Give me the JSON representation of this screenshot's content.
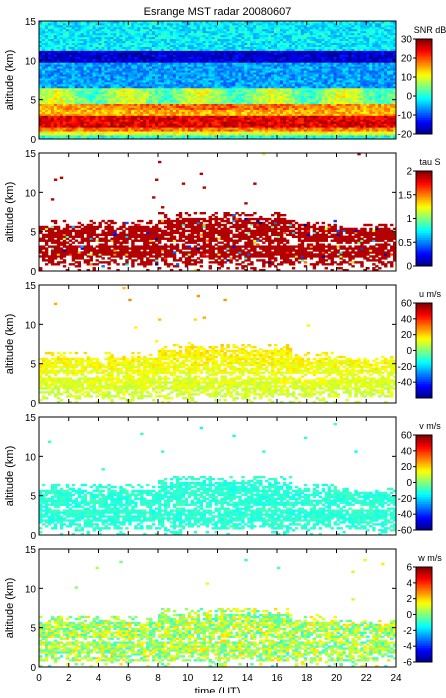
{
  "chart_data": [
    {
      "type": "heatmap",
      "title": "Esrange MST radar 20080607",
      "xlabel": "",
      "ylabel": "altitude (km)",
      "xlim": [
        0,
        24
      ],
      "ylim": [
        0,
        15
      ],
      "xticks": [
        0,
        2,
        4,
        6,
        8,
        10,
        12,
        14,
        16,
        18,
        20,
        22,
        24
      ],
      "yticks": [
        0,
        5,
        10,
        15
      ],
      "colorbar": {
        "label": "SNR dB",
        "range": [
          -20,
          30
        ],
        "ticks": [
          -20,
          -10,
          0,
          10,
          20,
          30
        ]
      },
      "features": [
        {
          "altitude_km": [
            0.5,
            1.5
          ],
          "value": 18
        },
        {
          "altitude_km": [
            1.5,
            3.0
          ],
          "value": 25
        },
        {
          "altitude_km": [
            3.0,
            4.5
          ],
          "value": 12
        },
        {
          "altitude_km": [
            4.5,
            6.5
          ],
          "value": 5
        },
        {
          "altitude_km": [
            6.5,
            10.0
          ],
          "value": -5
        },
        {
          "altitude_km": [
            10.0,
            11.0
          ],
          "value": -15
        },
        {
          "altitude_km": [
            11.0,
            15.0
          ],
          "value": -3
        }
      ]
    },
    {
      "type": "heatmap",
      "title": "",
      "xlabel": "",
      "ylabel": "altitude (km)",
      "xlim": [
        0,
        24
      ],
      "ylim": [
        0,
        15
      ],
      "xticks": [
        0,
        2,
        4,
        6,
        8,
        10,
        12,
        14,
        16,
        18,
        20,
        22,
        24
      ],
      "yticks": [
        0,
        5,
        10,
        15
      ],
      "colorbar": {
        "label": "tau S",
        "range": [
          0,
          2
        ],
        "ticks": [
          0,
          0.5,
          1,
          1.5,
          2
        ]
      },
      "features": [
        {
          "altitude_km": [
            1.5,
            6.5
          ],
          "value": 1.9
        }
      ]
    },
    {
      "type": "heatmap",
      "title": "",
      "xlabel": "",
      "ylabel": "altitude (km)",
      "xlim": [
        0,
        24
      ],
      "ylim": [
        0,
        15
      ],
      "xticks": [
        0,
        2,
        4,
        6,
        8,
        10,
        12,
        14,
        16,
        18,
        20,
        22,
        24
      ],
      "yticks": [
        0,
        5,
        10,
        15
      ],
      "colorbar": {
        "label": "u m/s",
        "range": [
          -60,
          60
        ],
        "ticks": [
          -40,
          -20,
          0,
          20,
          40,
          60
        ]
      },
      "features": [
        {
          "altitude_km": [
            1.5,
            7.0
          ],
          "value": 12
        }
      ]
    },
    {
      "type": "heatmap",
      "title": "",
      "xlabel": "",
      "ylabel": "altitude (km)",
      "xlim": [
        0,
        24
      ],
      "ylim": [
        0,
        15
      ],
      "xticks": [
        0,
        2,
        4,
        6,
        8,
        10,
        12,
        14,
        16,
        18,
        20,
        22,
        24
      ],
      "yticks": [
        0,
        5,
        10,
        15
      ],
      "colorbar": {
        "label": "v m/s",
        "range": [
          -60,
          60
        ],
        "ticks": [
          -60,
          -40,
          -20,
          0,
          20,
          40,
          60
        ]
      },
      "features": [
        {
          "altitude_km": [
            1.5,
            7.0
          ],
          "value": -10
        }
      ]
    },
    {
      "type": "heatmap",
      "title": "",
      "xlabel": "time (UT)",
      "ylabel": "altitude (km)",
      "xlim": [
        0,
        24
      ],
      "ylim": [
        0,
        15
      ],
      "xticks": [
        0,
        2,
        4,
        6,
        8,
        10,
        12,
        14,
        16,
        18,
        20,
        22,
        24
      ],
      "yticks": [
        0,
        5,
        10,
        15
      ],
      "colorbar": {
        "label": "w m/s",
        "range": [
          -6,
          6
        ],
        "ticks": [
          -6,
          -4,
          -2,
          0,
          2,
          4,
          6
        ]
      },
      "features": [
        {
          "altitude_km": [
            0.5,
            7.0
          ],
          "value": 0.5
        }
      ]
    }
  ]
}
